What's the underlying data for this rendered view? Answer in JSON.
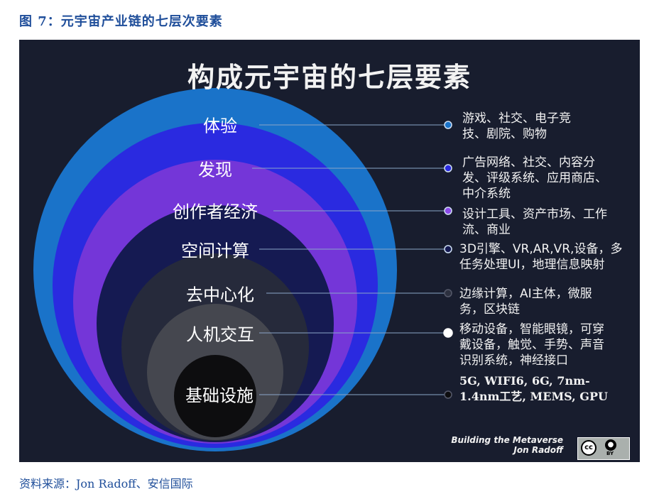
{
  "figure_title": "图 7：元宇宙产业链的七层次要素",
  "diagram": {
    "title": "构成元宇宙的七层要素",
    "layers": [
      {
        "label": "体验",
        "description": "游戏、社交、电子竞技、剧院、购物",
        "color": "#1a73c9",
        "dot": "#1a73c9"
      },
      {
        "label": "发现",
        "description": "广告网络、社交、内容分发、评级系统、应用商店、中介系统",
        "color": "#2a2ae0",
        "dot": "#2a2ae0"
      },
      {
        "label": "创作者经济",
        "description": "设计工具、资产市场、工作流、商业",
        "color": "#7436d8",
        "dot": "#8c4ae8"
      },
      {
        "label": "空间计算",
        "description": "3D引擎、VR,AR,VR,设备，多任务处理UI，地理信息映射",
        "color": "#151a52",
        "dot": "#151a52"
      },
      {
        "label": "去中心化",
        "description": "边缘计算，AI主体，微服务，区块链",
        "color": "#262a3b",
        "dot": "#2c303f"
      },
      {
        "label": "人机交互",
        "description": "移动设备，智能眼镜，可穿戴设备，触觉、手势、声音识别系统，神经接口",
        "color": "#45474f",
        "dot": "#ffffff"
      },
      {
        "label": "基础设施",
        "description": "5G, WIFI6, 6G, 7nm-1.4nm工艺, MEMS, GPU",
        "color": "#0d0d0f",
        "dot": "#0d0d0f"
      }
    ],
    "credit_line1": "Building the Metaverse",
    "credit_line2": "Jon Radoff",
    "license_badge": {
      "cc": "cc",
      "by": "BY"
    }
  },
  "source": "资料来源：Jon Radoff、安信国际"
}
